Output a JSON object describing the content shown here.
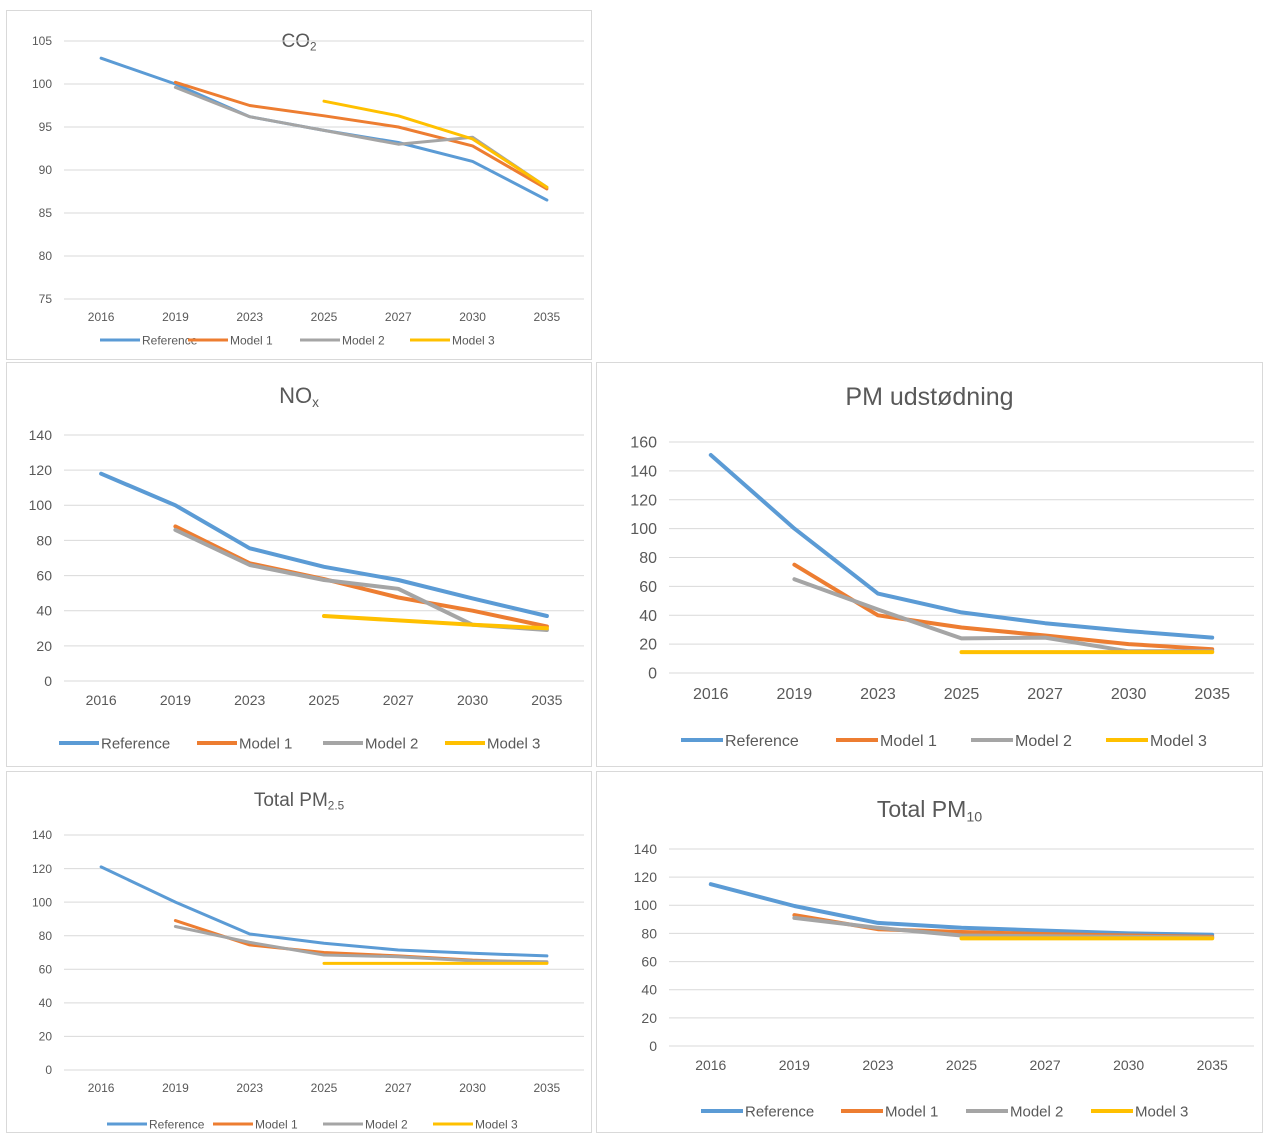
{
  "colors": {
    "Reference": "#5b9bd5",
    "Model 1": "#ed7d31",
    "Model 2": "#a5a5a5",
    "Model 3": "#ffc000"
  },
  "chart_data": [
    {
      "id": "co2",
      "type": "line",
      "title": "CO",
      "title_sub": "2",
      "categories": [
        "2016",
        "2019",
        "2023",
        "2025",
        "2027",
        "2030",
        "2035"
      ],
      "ylim": [
        75,
        105
      ],
      "yticks": [
        75,
        80,
        85,
        90,
        95,
        100,
        105
      ],
      "grid": true,
      "legend": "bottom",
      "series": [
        {
          "name": "Reference",
          "values": [
            103,
            100,
            96.2,
            94.6,
            93.2,
            91,
            86.5
          ]
        },
        {
          "name": "Model 1",
          "values": [
            null,
            100.2,
            97.5,
            96.3,
            95,
            92.8,
            87.8
          ]
        },
        {
          "name": "Model 2",
          "values": [
            null,
            99.6,
            96.2,
            94.6,
            93,
            93.8,
            88
          ]
        },
        {
          "name": "Model 3",
          "values": [
            null,
            null,
            null,
            98,
            96.3,
            93.6,
            88
          ]
        }
      ]
    },
    {
      "id": "nox",
      "type": "line",
      "title": "NO",
      "title_sub": "x",
      "categories": [
        "2016",
        "2019",
        "2023",
        "2025",
        "2027",
        "2030",
        "2035"
      ],
      "ylim": [
        0,
        140
      ],
      "yticks": [
        0,
        20,
        40,
        60,
        80,
        100,
        120,
        140
      ],
      "grid": true,
      "legend": "bottom",
      "series": [
        {
          "name": "Reference",
          "values": [
            118,
            100,
            75.5,
            65,
            57.5,
            47,
            37
          ]
        },
        {
          "name": "Model 1",
          "values": [
            null,
            88,
            67,
            58,
            47.5,
            40,
            31
          ]
        },
        {
          "name": "Model 2",
          "values": [
            null,
            86,
            66,
            57.5,
            52.5,
            32,
            29
          ]
        },
        {
          "name": "Model 3",
          "values": [
            null,
            null,
            null,
            37,
            34.5,
            32,
            30
          ]
        }
      ]
    },
    {
      "id": "pm",
      "type": "line",
      "title": "PM udstødning",
      "title_sub": "",
      "categories": [
        "2016",
        "2019",
        "2023",
        "2025",
        "2027",
        "2030",
        "2035"
      ],
      "ylim": [
        0,
        160
      ],
      "yticks": [
        0,
        20,
        40,
        60,
        80,
        100,
        120,
        140,
        160
      ],
      "grid": true,
      "legend": "bottom",
      "series": [
        {
          "name": "Reference",
          "values": [
            151,
            100,
            55,
            42,
            34.5,
            29,
            24.5
          ]
        },
        {
          "name": "Model 1",
          "values": [
            null,
            75,
            40,
            31.5,
            26,
            20,
            16.5
          ]
        },
        {
          "name": "Model 2",
          "values": [
            null,
            65,
            44,
            24,
            24.5,
            15,
            15
          ]
        },
        {
          "name": "Model 3",
          "values": [
            null,
            null,
            null,
            14.5,
            14.5,
            14.5,
            14.5
          ]
        }
      ]
    },
    {
      "id": "pm25",
      "type": "line",
      "title": "Total PM",
      "title_sub": "2.5",
      "categories": [
        "2016",
        "2019",
        "2023",
        "2025",
        "2027",
        "2030",
        "2035"
      ],
      "ylim": [
        0,
        140
      ],
      "yticks": [
        0,
        20,
        40,
        60,
        80,
        100,
        120,
        140
      ],
      "grid": true,
      "legend": "bottom",
      "series": [
        {
          "name": "Reference",
          "values": [
            121,
            100,
            81,
            75.5,
            71.5,
            69.5,
            68
          ]
        },
        {
          "name": "Model 1",
          "values": [
            null,
            89,
            74.5,
            70,
            68,
            65.5,
            64
          ]
        },
        {
          "name": "Model 2",
          "values": [
            null,
            85.5,
            76,
            68.5,
            67.5,
            65,
            64.5
          ]
        },
        {
          "name": "Model 3",
          "values": [
            null,
            null,
            null,
            63.5,
            63.5,
            63.5,
            63.5
          ]
        }
      ]
    },
    {
      "id": "pm10",
      "type": "line",
      "title": "Total PM",
      "title_sub": "10",
      "categories": [
        "2016",
        "2019",
        "2023",
        "2025",
        "2027",
        "2030",
        "2035"
      ],
      "ylim": [
        0,
        140
      ],
      "yticks": [
        0,
        20,
        40,
        60,
        80,
        100,
        120,
        140
      ],
      "grid": true,
      "legend": "bottom",
      "series": [
        {
          "name": "Reference",
          "values": [
            115,
            99.5,
            87.5,
            84,
            82,
            80,
            79
          ]
        },
        {
          "name": "Model 1",
          "values": [
            null,
            93,
            83,
            81,
            79.5,
            78.5,
            77.5
          ]
        },
        {
          "name": "Model 2",
          "values": [
            null,
            91,
            84,
            78.5,
            78,
            77.5,
            77
          ]
        },
        {
          "name": "Model 3",
          "values": [
            null,
            null,
            null,
            76.5,
            76.5,
            76.5,
            76.5
          ]
        }
      ]
    }
  ]
}
